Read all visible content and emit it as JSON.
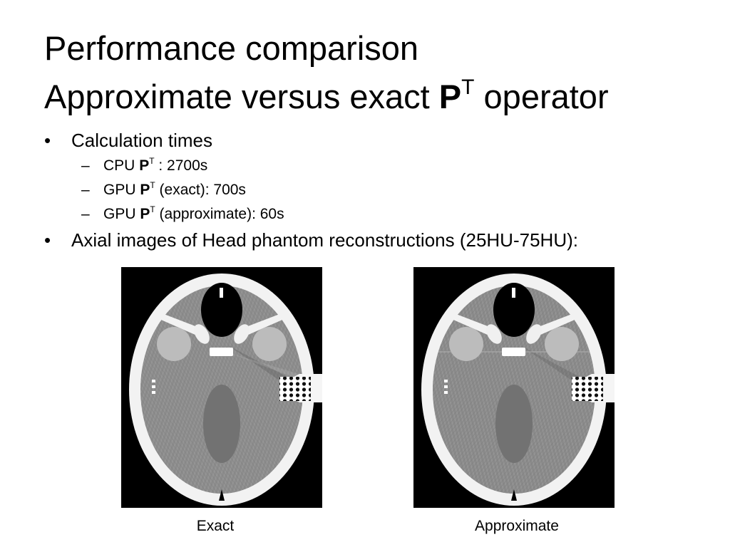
{
  "title": {
    "line1": "Performance comparison",
    "line2_prefix": "Approximate versus exact ",
    "line2_symbol": "P",
    "line2_sup": "T",
    "line2_suffix": " operator"
  },
  "bullets": [
    {
      "marker": "•",
      "text": "Calculation times",
      "subitems": [
        {
          "marker": "–",
          "prefix": "CPU ",
          "symbol": "P",
          "sup": "T",
          "suffix": " : 2700s"
        },
        {
          "marker": "–",
          "prefix": "GPU ",
          "symbol": "P",
          "sup": "T",
          "suffix": " (exact): 700s"
        },
        {
          "marker": "–",
          "prefix": "GPU ",
          "symbol": "P",
          "sup": "T",
          "suffix": " (approximate): 60s"
        }
      ]
    },
    {
      "marker": "•",
      "text": "Axial images of Head phantom reconstructions (25HU-75HU):"
    }
  ],
  "images": [
    {
      "caption": "Exact"
    },
    {
      "caption": "Approximate"
    }
  ]
}
